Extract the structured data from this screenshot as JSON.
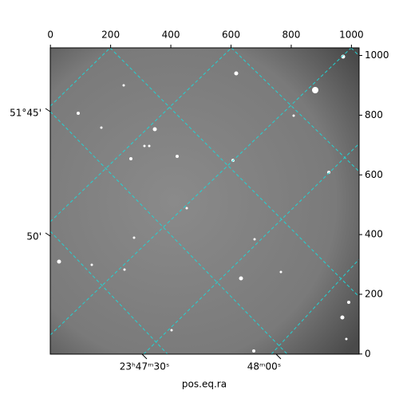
{
  "chart_data": {
    "type": "image",
    "xlabel": "pos.eq.ra",
    "xlim": [
      -0.5,
      1025.5
    ],
    "ylim": [
      -0.5,
      1025.5
    ],
    "xticks": [
      0,
      200,
      400,
      600,
      800,
      1000
    ],
    "yticks": [
      0,
      200,
      400,
      600,
      800,
      1000
    ],
    "ra_ticks": [
      "23ʰ47ᵐ30ˢ",
      "48ᵐ00ˢ"
    ],
    "dec_ticks": [
      "51°45'",
      "50'"
    ],
    "grid": true,
    "grid_color": "#22d3d3"
  }
}
